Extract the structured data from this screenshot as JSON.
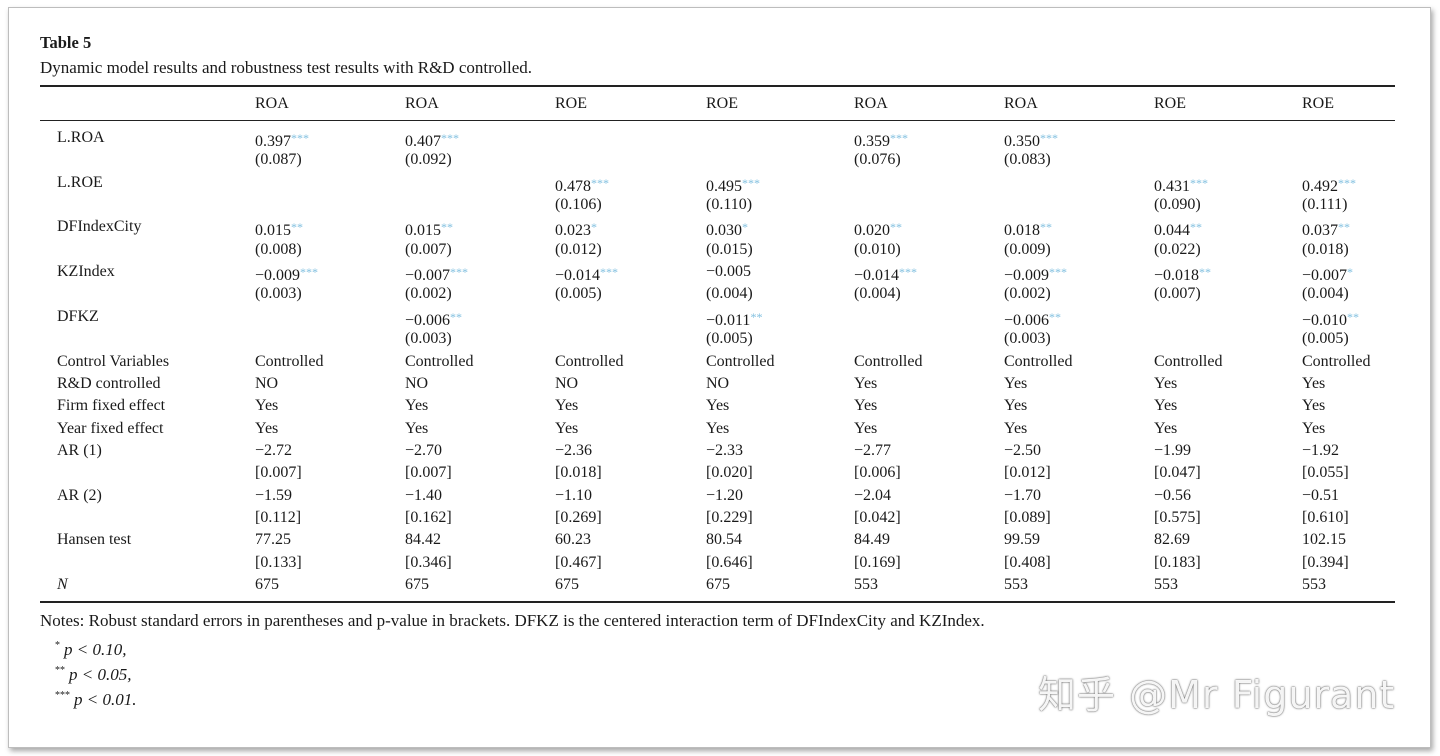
{
  "table": {
    "title": "Table 5",
    "caption": "Dynamic model results and robustness test results with R&D controlled.",
    "columns": [
      "ROA",
      "ROA",
      "ROE",
      "ROE",
      "ROA",
      "ROA",
      "ROE",
      "ROE"
    ],
    "rows": [
      {
        "label": "L.ROA",
        "coef": [
          "0.397",
          "0.407",
          "",
          "",
          "0.359",
          "0.350",
          "",
          ""
        ],
        "stars": [
          "***",
          "***",
          "",
          "",
          "***",
          "***",
          "",
          ""
        ],
        "se": [
          "(0.087)",
          "(0.092)",
          "",
          "",
          "(0.076)",
          "(0.083)",
          "",
          ""
        ]
      },
      {
        "label": "L.ROE",
        "coef": [
          "",
          "",
          "0.478",
          "0.495",
          "",
          "",
          "0.431",
          "0.492"
        ],
        "stars": [
          "",
          "",
          "***",
          "***",
          "",
          "",
          "***",
          "***"
        ],
        "se": [
          "",
          "",
          "(0.106)",
          "(0.110)",
          "",
          "",
          "(0.090)",
          "(0.111)"
        ]
      },
      {
        "label": "DFIndexCity",
        "coef": [
          "0.015",
          "0.015",
          "0.023",
          "0.030",
          "0.020",
          "0.018",
          "0.044",
          "0.037"
        ],
        "stars": [
          "**",
          "**",
          "*",
          "*",
          "**",
          "**",
          "**",
          "**"
        ],
        "se": [
          "(0.008)",
          "(0.007)",
          "(0.012)",
          "(0.015)",
          "(0.010)",
          "(0.009)",
          "(0.022)",
          "(0.018)"
        ]
      },
      {
        "label": "KZIndex",
        "coef": [
          "−0.009",
          "−0.007",
          "−0.014",
          "−0.005",
          "−0.014",
          "−0.009",
          "−0.018",
          "−0.007"
        ],
        "stars": [
          "***",
          "***",
          "***",
          "",
          "***",
          "***",
          "**",
          "*"
        ],
        "se": [
          "(0.003)",
          "(0.002)",
          "(0.005)",
          "(0.004)",
          "(0.004)",
          "(0.002)",
          "(0.007)",
          "(0.004)"
        ]
      },
      {
        "label": "DFKZ",
        "coef": [
          "",
          "−0.006",
          "",
          "−0.011",
          "",
          "−0.006",
          "",
          "−0.010"
        ],
        "stars": [
          "",
          "**",
          "",
          "**",
          "",
          "**",
          "",
          "**"
        ],
        "se": [
          "",
          "(0.003)",
          "",
          "(0.005)",
          "",
          "(0.003)",
          "",
          "(0.005)"
        ]
      },
      {
        "label": "Control Variables",
        "coef": [
          "Controlled",
          "Controlled",
          "Controlled",
          "Controlled",
          "Controlled",
          "Controlled",
          "Controlled",
          "Controlled"
        ]
      },
      {
        "label": "R&D controlled",
        "coef": [
          "NO",
          "NO",
          "NO",
          "NO",
          "Yes",
          "Yes",
          "Yes",
          "Yes"
        ]
      },
      {
        "label": "Firm fixed effect",
        "coef": [
          "Yes",
          "Yes",
          "Yes",
          "Yes",
          "Yes",
          "Yes",
          "Yes",
          "Yes"
        ]
      },
      {
        "label": "Year fixed effect",
        "coef": [
          "Yes",
          "Yes",
          "Yes",
          "Yes",
          "Yes",
          "Yes",
          "Yes",
          "Yes"
        ]
      },
      {
        "label": "AR (1)",
        "coef": [
          "−2.72",
          "−2.70",
          "−2.36",
          "−2.33",
          "−2.77",
          "−2.50",
          "−1.99",
          "−1.92"
        ],
        "se": [
          "[0.007]",
          "[0.007]",
          "[0.018]",
          "[0.020]",
          "[0.006]",
          "[0.012]",
          "[0.047]",
          "[0.055]"
        ]
      },
      {
        "label": "AR (2)",
        "coef": [
          "−1.59",
          "−1.40",
          "−1.10",
          "−1.20",
          "−2.04",
          "−1.70",
          "−0.56",
          "−0.51"
        ],
        "se": [
          "[0.112]",
          "[0.162]",
          "[0.269]",
          "[0.229]",
          "[0.042]",
          "[0.089]",
          "[0.575]",
          "[0.610]"
        ]
      },
      {
        "label": "Hansen test",
        "coef": [
          "77.25",
          "84.42",
          "60.23",
          "80.54",
          "84.49",
          "99.59",
          "82.69",
          "102.15"
        ],
        "se": [
          "[0.133]",
          "[0.346]",
          "[0.467]",
          "[0.646]",
          "[0.169]",
          "[0.408]",
          "[0.183]",
          "[0.394]"
        ]
      },
      {
        "label": "N",
        "italic": true,
        "coef": [
          "675",
          "675",
          "675",
          "675",
          "553",
          "553",
          "553",
          "553"
        ]
      }
    ]
  },
  "notes": {
    "text": "Notes: Robust standard errors in parentheses and p-value in brackets. DFKZ is the centered interaction term of DFIndexCity and KZIndex.",
    "footnotes": [
      {
        "mark": "*",
        "text": "p < 0.10,"
      },
      {
        "mark": "**",
        "text": "p < 0.05,"
      },
      {
        "mark": "***",
        "text": "p < 0.01."
      }
    ]
  },
  "watermark": "知乎 @Mr Figurant",
  "colors": {
    "stars": "#7fbfdf",
    "text": "#1a1a1a"
  }
}
